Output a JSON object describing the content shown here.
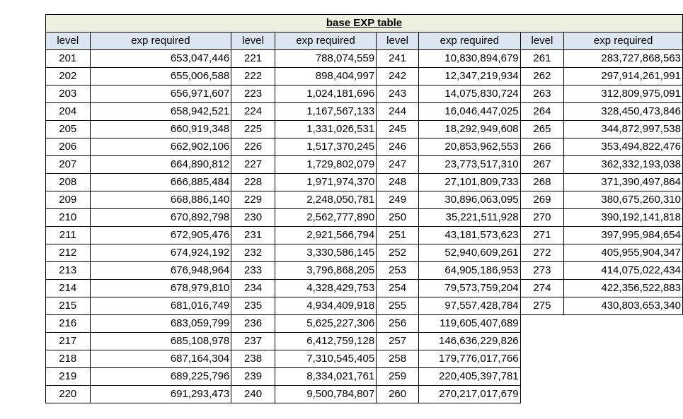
{
  "table": {
    "title": "base EXP table",
    "headers": [
      "level",
      "exp required",
      "level",
      "exp required",
      "level",
      "exp required",
      "level",
      "exp required"
    ],
    "rows": [
      [
        "201",
        "653,047,446",
        "221",
        "788,074,559",
        "241",
        "10,830,894,679",
        "261",
        "283,727,868,563"
      ],
      [
        "202",
        "655,006,588",
        "222",
        "898,404,997",
        "242",
        "12,347,219,934",
        "262",
        "297,914,261,991"
      ],
      [
        "203",
        "656,971,607",
        "223",
        "1,024,181,696",
        "243",
        "14,075,830,724",
        "263",
        "312,809,975,091"
      ],
      [
        "204",
        "658,942,521",
        "224",
        "1,167,567,133",
        "244",
        "16,046,447,025",
        "264",
        "328,450,473,846"
      ],
      [
        "205",
        "660,919,348",
        "225",
        "1,331,026,531",
        "245",
        "18,292,949,608",
        "265",
        "344,872,997,538"
      ],
      [
        "206",
        "662,902,106",
        "226",
        "1,517,370,245",
        "246",
        "20,853,962,553",
        "266",
        "353,494,822,476"
      ],
      [
        "207",
        "664,890,812",
        "227",
        "1,729,802,079",
        "247",
        "23,773,517,310",
        "267",
        "362,332,193,038"
      ],
      [
        "208",
        "666,885,484",
        "228",
        "1,971,974,370",
        "248",
        "27,101,809,733",
        "268",
        "371,390,497,864"
      ],
      [
        "209",
        "668,886,140",
        "229",
        "2,248,050,781",
        "249",
        "30,896,063,095",
        "269",
        "380,675,260,310"
      ],
      [
        "210",
        "670,892,798",
        "230",
        "2,562,777,890",
        "250",
        "35,221,511,928",
        "270",
        "390,192,141,818"
      ],
      [
        "211",
        "672,905,476",
        "231",
        "2,921,566,794",
        "251",
        "43,181,573,623",
        "271",
        "397,995,984,654"
      ],
      [
        "212",
        "674,924,192",
        "232",
        "3,330,586,145",
        "252",
        "52,940,609,261",
        "272",
        "405,955,904,347"
      ],
      [
        "213",
        "676,948,964",
        "233",
        "3,796,868,205",
        "253",
        "64,905,186,953",
        "273",
        "414,075,022,434"
      ],
      [
        "214",
        "678,979,810",
        "234",
        "4,328,429,753",
        "254",
        "79,573,759,204",
        "274",
        "422,356,522,883"
      ],
      [
        "215",
        "681,016,749",
        "235",
        "4,934,409,918",
        "255",
        "97,557,428,784",
        "275",
        "430,803,653,340"
      ],
      [
        "216",
        "683,059,799",
        "236",
        "5,625,227,306",
        "256",
        "119,605,407,689",
        "",
        ""
      ],
      [
        "217",
        "685,108,978",
        "237",
        "6,412,759,128",
        "257",
        "146,636,229,826",
        "",
        ""
      ],
      [
        "218",
        "687,164,304",
        "238",
        "7,310,545,405",
        "258",
        "179,776,017,766",
        "",
        ""
      ],
      [
        "219",
        "689,225,796",
        "239",
        "8,334,021,761",
        "259",
        "220,405,397,781",
        "",
        ""
      ],
      [
        "220",
        "691,293,473",
        "240",
        "9,500,784,807",
        "260",
        "270,217,017,679",
        "",
        ""
      ]
    ]
  },
  "colors": {
    "title_background": "#ebf1de",
    "header_background": "#dce6f1",
    "border": "#000000"
  }
}
